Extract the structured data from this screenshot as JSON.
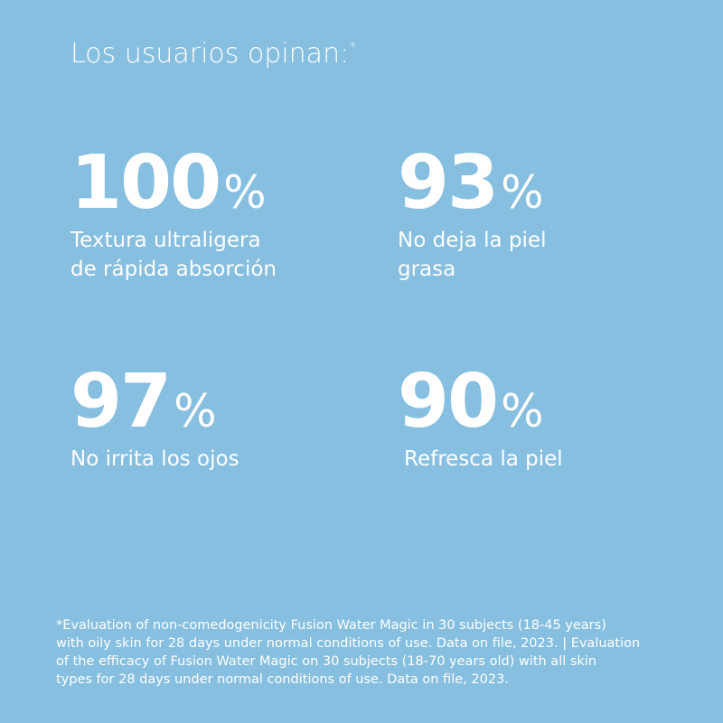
{
  "title": "Los usuarios opinan:",
  "title_mark": "*",
  "stats": [
    {
      "value": 100,
      "unit": "%",
      "lines": [
        "Textura ultraligera",
        "de rápida absorción"
      ]
    },
    {
      "value": 93,
      "unit": "%",
      "lines": [
        "No deja la piel",
        "grasa"
      ]
    },
    {
      "value": 97,
      "unit": "%",
      "lines": [
        "No irrita los ojos"
      ]
    },
    {
      "value": 90,
      "unit": "%",
      "lines": [
        "Refresca la piel"
      ]
    }
  ],
  "footnote": [
    "*Evaluation of non-comedogenicity Fusion Water Magic in 30 subjects (18-45 years)",
    "with oily skin for 28 days under normal conditions of use. Data on file, 2023. | Evaluation",
    "of the efficacy of Fusion Water Magic on 30 subjects (18-70 years old) with all skin",
    "types for 28 days under normal conditions of use. Data on file, 2023."
  ]
}
